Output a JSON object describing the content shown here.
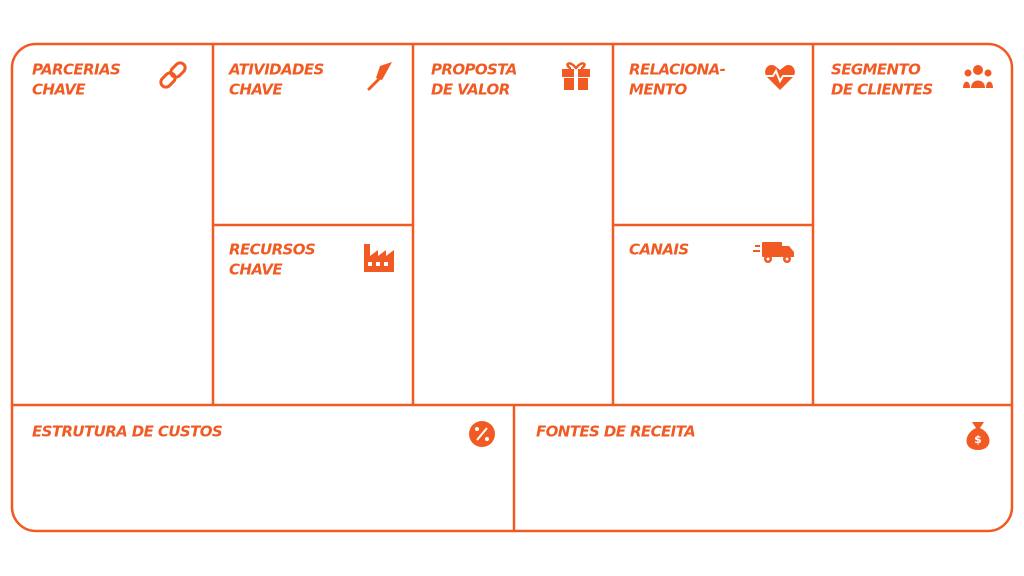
{
  "blocks": [
    {
      "lines": [
        "PARCERIAS",
        "CHAVE"
      ]
    },
    {
      "lines": [
        "ATIVIDADES",
        "CHAVE"
      ]
    },
    {
      "lines": [
        "RECURSOS",
        "CHAVE"
      ]
    },
    {
      "lines": [
        "PROPOSTA",
        "DE VALOR"
      ]
    },
    {
      "lines": [
        "RELACIONA-",
        "MENTO"
      ]
    },
    {
      "lines": [
        "CANAIS"
      ]
    },
    {
      "lines": [
        "SEGMENTO",
        "DE CLIENTES"
      ]
    },
    {
      "lines": [
        "ESTRUTURA DE CUSTOS"
      ]
    },
    {
      "lines": [
        "FONTES DE RECEITA"
      ]
    }
  ]
}
